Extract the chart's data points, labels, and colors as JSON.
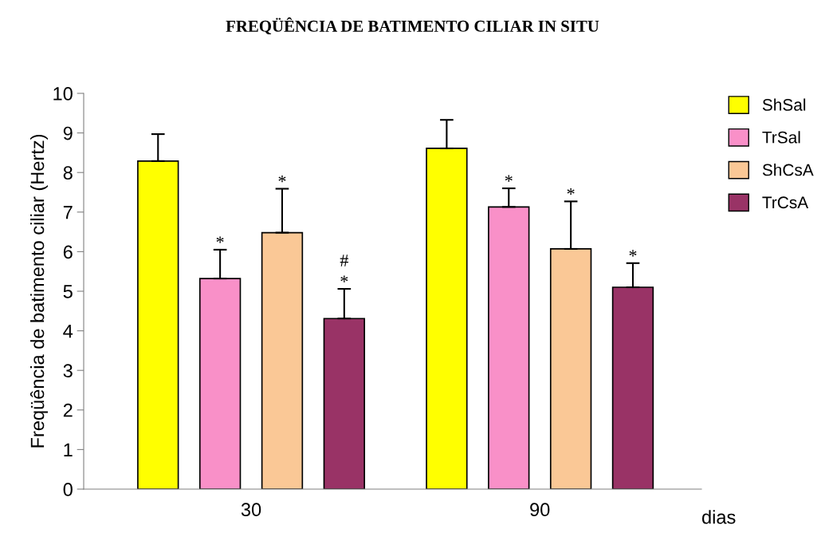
{
  "chart_data": {
    "type": "bar",
    "title": "FREQÜÊNCIA DE BATIMENTO CILIAR IN SITU",
    "xlabel": "dias",
    "ylabel": "Freqüência de batimento ciliar (Hertz)",
    "categories": [
      "30",
      "90"
    ],
    "series": [
      {
        "name": "ShSal",
        "color": "#ffff00",
        "values": [
          8.29,
          8.61
        ],
        "errors": [
          [
            8.29,
            8.97
          ],
          [
            8.61,
            9.33
          ]
        ]
      },
      {
        "name": "TrSal",
        "color": "#f990c8",
        "values": [
          5.32,
          7.13
        ],
        "errors": [
          [
            5.32,
            6.05
          ],
          [
            7.13,
            7.6
          ]
        ],
        "value_labels": [
          "*",
          "*"
        ]
      },
      {
        "name": "ShCsA",
        "color": "#fac896",
        "values": [
          6.48,
          6.07
        ],
        "errors": [
          [
            6.48,
            7.59
          ],
          [
            6.07,
            7.27
          ]
        ],
        "value_labels": [
          "*",
          "*"
        ]
      },
      {
        "name": "TrCsA",
        "color": "#993366",
        "values": [
          4.31,
          5.1
        ],
        "errors": [
          [
            4.31,
            5.06
          ],
          [
            5.1,
            5.71
          ]
        ],
        "value_labels": [
          "#\n*",
          "*"
        ]
      }
    ],
    "ylim": [
      0,
      10
    ],
    "yticks": [
      0,
      1,
      2,
      3,
      4,
      5,
      6,
      7,
      8,
      9,
      10
    ],
    "grid": false,
    "legend": "top right"
  }
}
